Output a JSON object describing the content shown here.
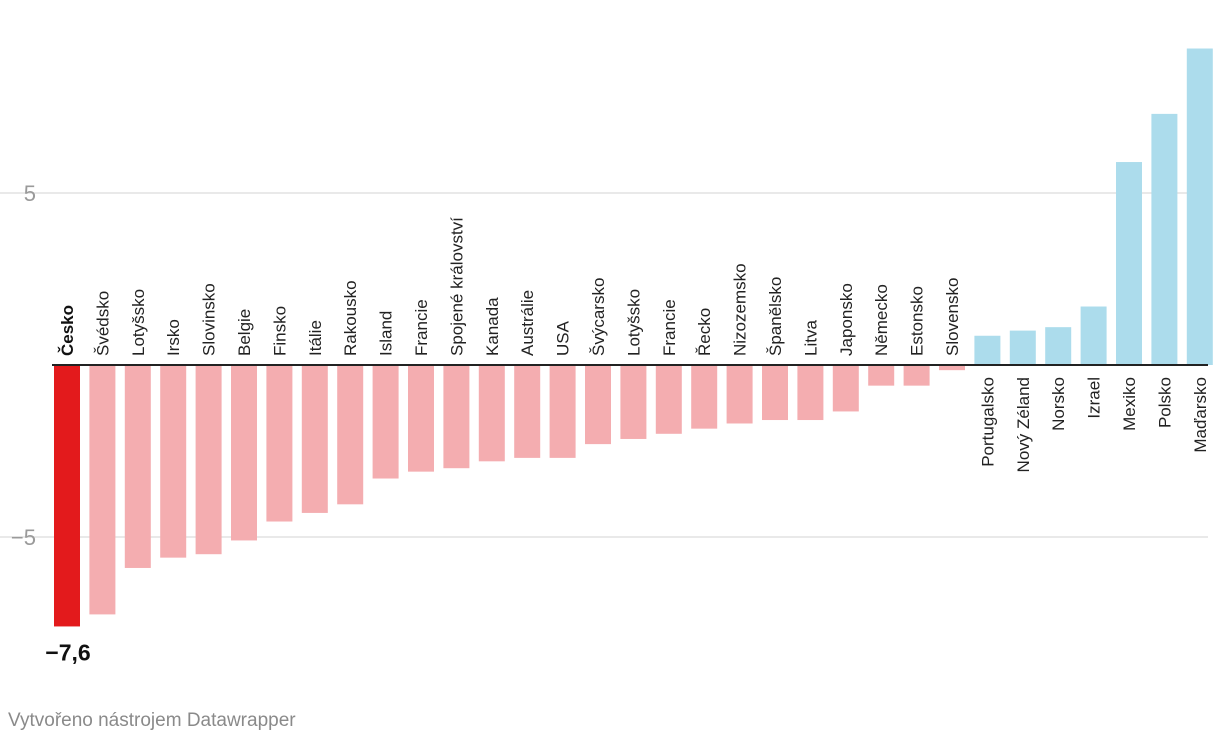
{
  "chart_data": {
    "type": "bar",
    "categories": [
      "Česko",
      "Švédsko",
      "Lotyšsko",
      "Irsko",
      "Slovinsko",
      "Belgie",
      "Finsko",
      "Itálie",
      "Rakousko",
      "Island",
      "Francie",
      "Spojené království",
      "Kanada",
      "Austrálie",
      "USA",
      "Švýcarsko",
      "Lotyšsko",
      "Francie",
      "Řecko",
      "Nizozemsko",
      "Španělsko",
      "Litva",
      "Japonsko",
      "Německo",
      "Estonsko",
      "Slovensko",
      "Portugalsko",
      "Nový Zéland",
      "Norsko",
      "Izrael",
      "Mexiko",
      "Polsko",
      "Maďarsko"
    ],
    "values": [
      -7.6,
      -7.25,
      -5.9,
      -5.6,
      -5.5,
      -5.1,
      -4.55,
      -4.3,
      -4.05,
      -3.3,
      -3.1,
      -3.0,
      -2.8,
      -2.7,
      -2.7,
      -2.3,
      -2.15,
      -2.0,
      -1.85,
      -1.7,
      -1.6,
      -1.6,
      -1.35,
      -0.6,
      -0.6,
      -0.15,
      0.85,
      1.0,
      1.1,
      1.7,
      5.9,
      7.3,
      9.2
    ],
    "highlight_index": 0,
    "highlight_label": "−7,6",
    "yticks": [
      5,
      -5
    ],
    "ytick_labels": [
      "5",
      "−5"
    ],
    "ylim": [
      -8.5,
      10.5
    ],
    "grid": true,
    "colors": {
      "highlight": "#e31a1c",
      "negative": "#f4adb0",
      "positive": "#acdcec",
      "grid": "#e2e2e2",
      "zero": "#222222"
    }
  },
  "footer": "Vytvořeno nástrojem Datawrapper"
}
